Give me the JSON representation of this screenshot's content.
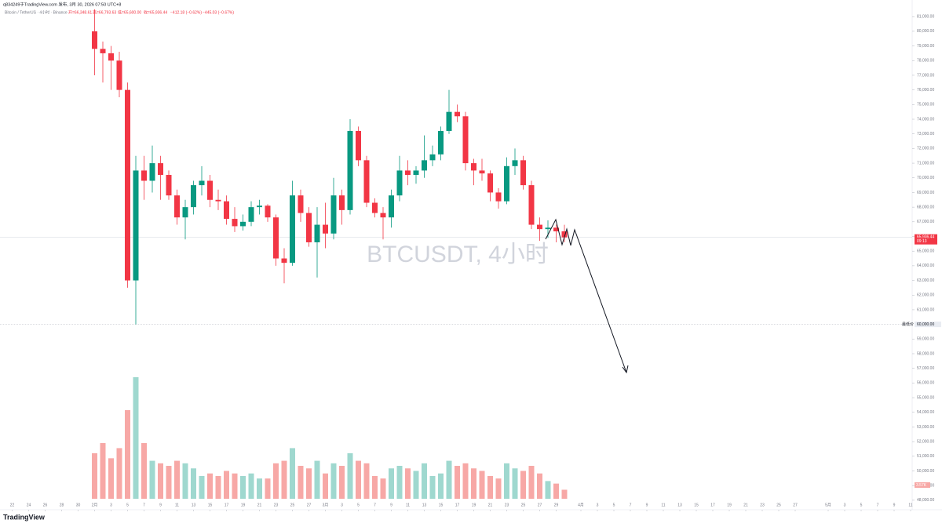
{
  "header": {
    "publisher": "q834249于TradingView.com 发布, 3月 30, 2026 07:50 UTC+8"
  },
  "chart_data": {
    "type": "candlestick",
    "symbol": "Bitcoin / TetherUS · 4小时 · Binance",
    "ohlc_labels": [
      "开=66,348.61",
      "高=66,793.63",
      "低=65,600.00",
      "收=65,936.44"
    ],
    "change": "−412.18 (−0.62%)",
    "change2": "−445.03 (−0.67%)",
    "watermark": "BTCUSDT, 4小时",
    "brand": "TradingView",
    "up_color": "#089981",
    "down_color": "#f23645",
    "volume_up_color": "#9fd8cf",
    "volume_down_color": "#f7a8a6",
    "x": [
      "2026-02-01",
      "2026-02-02",
      "2026-02-03",
      "2026-02-04",
      "2026-02-05",
      "2026-02-06",
      "2026-02-07",
      "2026-02-08",
      "2026-02-09",
      "2026-02-10",
      "2026-02-11",
      "2026-02-12",
      "2026-02-13",
      "2026-02-14",
      "2026-02-15",
      "2026-02-16",
      "2026-02-17",
      "2026-02-18",
      "2026-02-19",
      "2026-02-20",
      "2026-02-21",
      "2026-02-22",
      "2026-02-23",
      "2026-02-24",
      "2026-02-25",
      "2026-02-26",
      "2026-02-27",
      "2026-02-28",
      "2026-03-01",
      "2026-03-02",
      "2026-03-03",
      "2026-03-04",
      "2026-03-05",
      "2026-03-06",
      "2026-03-07",
      "2026-03-08",
      "2026-03-09",
      "2026-03-10",
      "2026-03-11",
      "2026-03-12",
      "2026-03-13",
      "2026-03-14",
      "2026-03-15",
      "2026-03-16",
      "2026-03-17",
      "2026-03-18",
      "2026-03-19",
      "2026-03-20",
      "2026-03-21",
      "2026-03-22",
      "2026-03-23",
      "2026-03-24",
      "2026-03-25",
      "2026-03-26",
      "2026-03-27",
      "2026-03-28",
      "2026-03-29",
      "2026-03-30"
    ],
    "open": [
      80000,
      78800,
      78500,
      78000,
      76000,
      63000,
      70500,
      69800,
      71000,
      70200,
      68800,
      67300,
      68000,
      69500,
      69800,
      68500,
      68400,
      67200,
      66700,
      67000,
      68000,
      68100,
      67300,
      64500,
      64200,
      68800,
      67600,
      65600,
      66800,
      66200,
      68800,
      67800,
      73200,
      71200,
      68300,
      67600,
      67300,
      68800,
      70500,
      70200,
      70500,
      71200,
      71600,
      73200,
      74500,
      74200,
      71000,
      70500,
      70300,
      69000,
      68400,
      70800,
      71200,
      69500,
      66800,
      66500,
      66600,
      66348.61
    ],
    "high": [
      81500,
      79300,
      79000,
      78600,
      76500,
      71500,
      71500,
      72200,
      71500,
      70500,
      69200,
      68500,
      69800,
      70800,
      70200,
      69200,
      68800,
      68000,
      67500,
      68400,
      68500,
      68200,
      67500,
      65200,
      69800,
      69200,
      68000,
      68000,
      68300,
      70000,
      69200,
      74000,
      73500,
      71500,
      68600,
      68000,
      69200,
      71500,
      71200,
      70800,
      72900,
      72200,
      73500,
      76000,
      75000,
      74500,
      71300,
      71300,
      70500,
      69300,
      71400,
      72000,
      71500,
      69800,
      67300,
      67100,
      66800,
      66793.63
    ],
    "low": [
      77000,
      76500,
      76000,
      75500,
      62500,
      60000,
      68500,
      69000,
      68500,
      68500,
      66800,
      65800,
      67500,
      68800,
      68000,
      67800,
      66800,
      66300,
      66400,
      66700,
      67500,
      67000,
      64000,
      62800,
      64000,
      67000,
      65300,
      63200,
      65200,
      65800,
      66800,
      67500,
      70800,
      68000,
      67300,
      65800,
      66600,
      68400,
      69500,
      69600,
      70000,
      70800,
      71200,
      73000,
      73800,
      70500,
      69500,
      69800,
      68400,
      67900,
      68200,
      70200,
      69200,
      66500,
      65700,
      65900,
      65600,
      65600
    ],
    "close": [
      78800,
      78500,
      78000,
      76000,
      63000,
      70500,
      69800,
      71000,
      70200,
      68800,
      67300,
      68000,
      69500,
      69800,
      68500,
      68400,
      67200,
      66700,
      67000,
      68000,
      68100,
      67300,
      64500,
      64200,
      68800,
      67600,
      65600,
      66800,
      66200,
      68800,
      67800,
      73200,
      71200,
      68300,
      67600,
      67300,
      68800,
      70500,
      70200,
      70500,
      71200,
      71600,
      73200,
      74500,
      74200,
      71000,
      70500,
      70300,
      69000,
      68400,
      70800,
      71200,
      69500,
      66800,
      66500,
      66600,
      66348.61,
      65936.44
    ],
    "volume": [
      18,
      22,
      16,
      20,
      35,
      48,
      22,
      15,
      14,
      13,
      15,
      14,
      12,
      9,
      10,
      9,
      11,
      10,
      9,
      10,
      8,
      8,
      14,
      15,
      20,
      13,
      12,
      15,
      10,
      14,
      13,
      18,
      15,
      14,
      9,
      8,
      12,
      13,
      12,
      11,
      14,
      9,
      10,
      15,
      13,
      14,
      12,
      11,
      9,
      8,
      14,
      12,
      11,
      13,
      10,
      7,
      6,
      3.57
    ],
    "last_volume_label": "3.57K",
    "last_price": {
      "value": 65936.44,
      "label": "65,936.44"
    },
    "countdown": "09:13",
    "low_line": {
      "value": 60000,
      "label": "60,000.00",
      "name": "最低价"
    },
    "xlim": [
      "2026-01-21",
      "2026-05-11"
    ],
    "xticks": [
      {
        "value": "2026-01-22",
        "label": "22"
      },
      {
        "value": "2026-01-24",
        "label": "24"
      },
      {
        "value": "2026-01-26",
        "label": "26"
      },
      {
        "value": "2026-01-28",
        "label": "28"
      },
      {
        "value": "2026-01-30",
        "label": "30"
      },
      {
        "value": "2026-02-01",
        "label": "2月"
      },
      {
        "value": "2026-02-03",
        "label": "3"
      },
      {
        "value": "2026-02-05",
        "label": "5"
      },
      {
        "value": "2026-02-07",
        "label": "7"
      },
      {
        "value": "2026-02-09",
        "label": "9"
      },
      {
        "value": "2026-02-11",
        "label": "11"
      },
      {
        "value": "2026-02-13",
        "label": "13"
      },
      {
        "value": "2026-02-15",
        "label": "15"
      },
      {
        "value": "2026-02-17",
        "label": "17"
      },
      {
        "value": "2026-02-19",
        "label": "19"
      },
      {
        "value": "2026-02-21",
        "label": "21"
      },
      {
        "value": "2026-02-23",
        "label": "23"
      },
      {
        "value": "2026-02-25",
        "label": "25"
      },
      {
        "value": "2026-02-27",
        "label": "27"
      },
      {
        "value": "2026-03-01",
        "label": "3月"
      },
      {
        "value": "2026-03-03",
        "label": "3"
      },
      {
        "value": "2026-03-05",
        "label": "5"
      },
      {
        "value": "2026-03-07",
        "label": "7"
      },
      {
        "value": "2026-03-09",
        "label": "9"
      },
      {
        "value": "2026-03-11",
        "label": "11"
      },
      {
        "value": "2026-03-13",
        "label": "13"
      },
      {
        "value": "2026-03-15",
        "label": "15"
      },
      {
        "value": "2026-03-17",
        "label": "17"
      },
      {
        "value": "2026-03-19",
        "label": "19"
      },
      {
        "value": "2026-03-21",
        "label": "21"
      },
      {
        "value": "2026-03-23",
        "label": "23"
      },
      {
        "value": "2026-03-25",
        "label": "25"
      },
      {
        "value": "2026-03-27",
        "label": "27"
      },
      {
        "value": "2026-03-29",
        "label": "29"
      },
      {
        "value": "2026-04-01",
        "label": "4月"
      },
      {
        "value": "2026-04-03",
        "label": "3"
      },
      {
        "value": "2026-04-05",
        "label": "5"
      },
      {
        "value": "2026-04-07",
        "label": "7"
      },
      {
        "value": "2026-04-09",
        "label": "9"
      },
      {
        "value": "2026-04-11",
        "label": "11"
      },
      {
        "value": "2026-04-13",
        "label": "13"
      },
      {
        "value": "2026-04-15",
        "label": "15"
      },
      {
        "value": "2026-04-17",
        "label": "17"
      },
      {
        "value": "2026-04-19",
        "label": "19"
      },
      {
        "value": "2026-04-21",
        "label": "21"
      },
      {
        "value": "2026-04-23",
        "label": "23"
      },
      {
        "value": "2026-04-25",
        "label": "25"
      },
      {
        "value": "2026-04-27",
        "label": "27"
      },
      {
        "value": "2026-05-01",
        "label": "5月"
      },
      {
        "value": "2026-05-03",
        "label": "3"
      },
      {
        "value": "2026-05-05",
        "label": "5"
      },
      {
        "value": "2026-05-07",
        "label": "7"
      },
      {
        "value": "2026-05-09",
        "label": "9"
      },
      {
        "value": "2026-05-11",
        "label": "11"
      }
    ],
    "ylim": [
      48100,
      81600
    ],
    "yticks": [
      {
        "value": 81000,
        "label": "81,000.00"
      },
      {
        "value": 80000,
        "label": "80,000.00"
      },
      {
        "value": 79000,
        "label": "79,000.00"
      },
      {
        "value": 78000,
        "label": "78,000.00"
      },
      {
        "value": 77000,
        "label": "77,000.00"
      },
      {
        "value": 76000,
        "label": "76,000.00"
      },
      {
        "value": 75000,
        "label": "75,000.00"
      },
      {
        "value": 74000,
        "label": "74,000.00"
      },
      {
        "value": 73000,
        "label": "73,000.00"
      },
      {
        "value": 72000,
        "label": "72,000.00"
      },
      {
        "value": 71000,
        "label": "71,000.00"
      },
      {
        "value": 70000,
        "label": "70,000.00"
      },
      {
        "value": 69000,
        "label": "69,000.00"
      },
      {
        "value": 68000,
        "label": "68,000.00"
      },
      {
        "value": 67000,
        "label": "67,000.00"
      },
      {
        "value": 66000,
        "label": "66,000.00"
      },
      {
        "value": 65000,
        "label": "65,000.00"
      },
      {
        "value": 64000,
        "label": "64,000.00"
      },
      {
        "value": 63000,
        "label": "63,000.00"
      },
      {
        "value": 62000,
        "label": "62,000.00"
      },
      {
        "value": 61000,
        "label": "61,000.00"
      },
      {
        "value": 59000,
        "label": "59,000.00"
      },
      {
        "value": 58000,
        "label": "58,000.00"
      },
      {
        "value": 57000,
        "label": "57,000.00"
      },
      {
        "value": 56000,
        "label": "56,000.00"
      },
      {
        "value": 55000,
        "label": "55,000.00"
      },
      {
        "value": 54000,
        "label": "54,000.00"
      },
      {
        "value": 53000,
        "label": "53,000.00"
      },
      {
        "value": 52000,
        "label": "52,000.00"
      },
      {
        "value": 51000,
        "label": "51,000.00"
      },
      {
        "value": 50000,
        "label": "50,000.00"
      },
      {
        "value": 49000,
        "label": "49,000.00"
      },
      {
        "value": 48000,
        "label": "48,000.00"
      }
    ],
    "grid": false
  }
}
